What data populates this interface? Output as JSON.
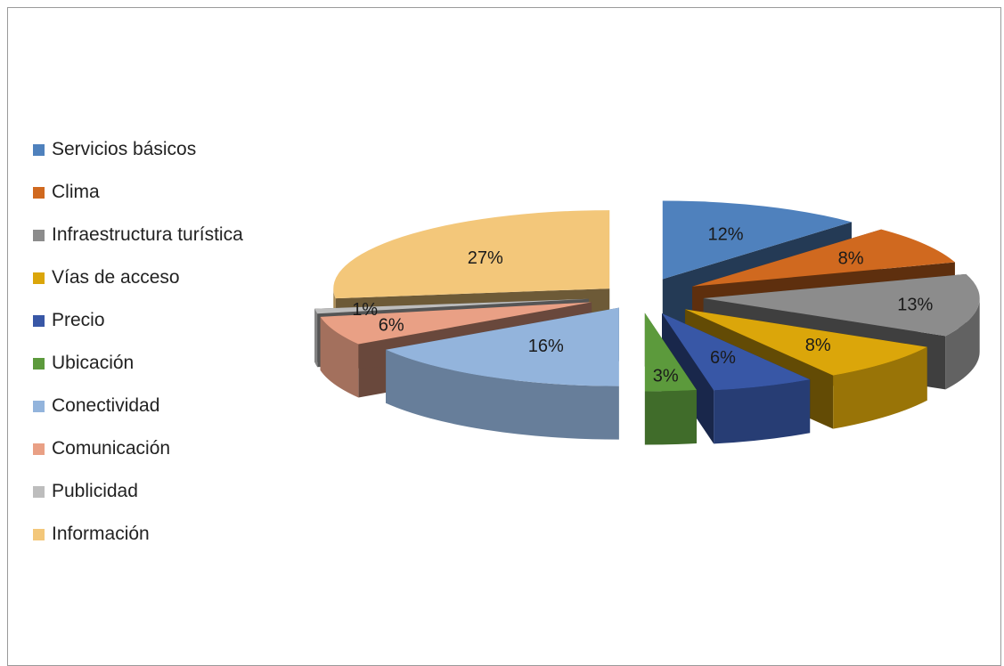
{
  "chart_data": {
    "type": "pie",
    "categories": [
      "Servicios básicos",
      "Clima",
      "Infraestructura turística",
      "Vías de acceso",
      "Precio",
      "Ubicación",
      "Conectividad",
      "Comunicación",
      "Publicidad",
      "Información"
    ],
    "values": [
      12,
      8,
      13,
      8,
      6,
      3,
      16,
      6,
      1,
      27
    ],
    "value_labels": [
      "12%",
      "8%",
      "13%",
      "8%",
      "6%",
      "3%",
      "16%",
      "6%",
      "1%",
      "27%"
    ],
    "colors": [
      "#4f81bd",
      "#d0691f",
      "#8c8c8c",
      "#dba60a",
      "#3857a6",
      "#5c9a3c",
      "#93b4dc",
      "#e9a085",
      "#bdbdbd",
      "#f3c77a"
    ],
    "style": "3d-exploded",
    "legend_position": "left"
  }
}
